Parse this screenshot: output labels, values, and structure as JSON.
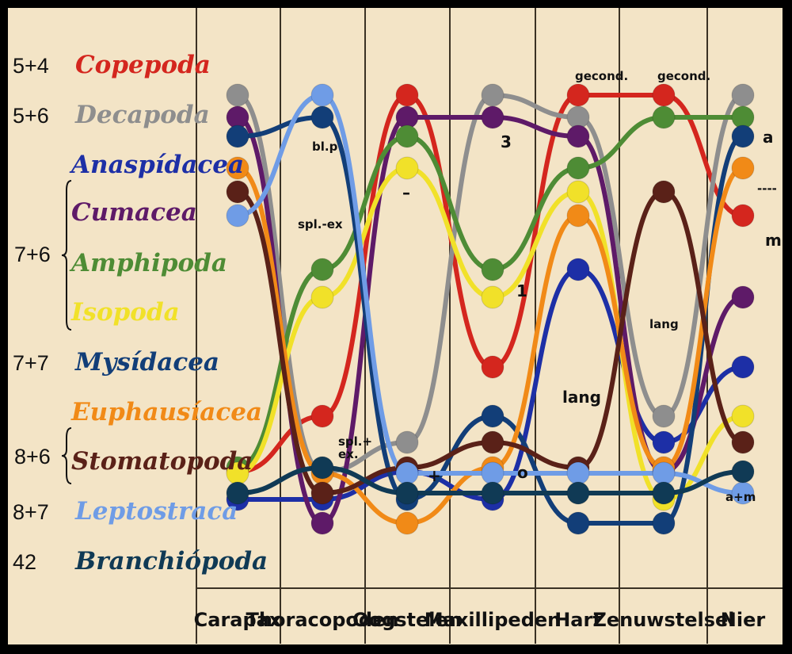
{
  "chart_data": {
    "type": "line",
    "categories": [
      "Carapax",
      "Thoracopoden",
      "Oogstelen",
      "Maxillipeden",
      "Hart",
      "Zenuwstelsel",
      "Nier"
    ],
    "series": [
      {
        "name": "Copepoda",
        "color": "#d4261e",
        "values": [
          12,
          10,
          1,
          7,
          1,
          1,
          6
        ]
      },
      {
        "name": "Decapoda",
        "color": "#8e8e8e",
        "values": [
          1,
          12,
          11,
          1,
          2,
          10,
          1
        ]
      },
      {
        "name": "Anaspidacea",
        "color": "#1d2fa6",
        "values": [
          13,
          13,
          12,
          13,
          8,
          11,
          7
        ]
      },
      {
        "name": "Cumacea",
        "color": "#5e1a68",
        "values": [
          2,
          14,
          2,
          2,
          3,
          12,
          9
        ]
      },
      {
        "name": "Amphipoda",
        "color": "#4e8c35",
        "values": [
          15,
          8,
          3,
          8,
          4,
          2,
          2
        ]
      },
      {
        "name": "Isopoda",
        "color": "#f1e129",
        "values": [
          16,
          9,
          4,
          9,
          5,
          13,
          10
        ]
      },
      {
        "name": "Mysidacea",
        "color": "#123e78",
        "values": [
          3,
          2,
          13,
          10,
          14,
          14,
          3
        ]
      },
      {
        "name": "Euphausiacea",
        "color": "#f18a17",
        "values": [
          4,
          16,
          14,
          15,
          6,
          15,
          4
        ]
      },
      {
        "name": "Stomatopoda",
        "color": "#5a2118",
        "values": [
          5,
          17,
          15,
          11,
          15,
          5,
          11
        ]
      },
      {
        "name": "Leptostraca",
        "color": "#6f9ce6",
        "values": [
          6,
          1,
          16,
          16,
          16,
          16,
          17
        ]
      },
      {
        "name": "Branchiopoda",
        "color": "#103a55",
        "values": [
          17,
          15,
          17,
          17,
          17,
          17,
          12
        ]
      }
    ],
    "legend": [
      {
        "formula": "5+4",
        "name": "Copepoda",
        "color": "#d4261e"
      },
      {
        "formula": "5+6",
        "name": "Decapoda",
        "color": "#8e8e8e"
      },
      {
        "formula": "",
        "name": "Anaspídacea",
        "color": "#1d2fa6"
      },
      {
        "formula": "",
        "name": "Cumacea",
        "color": "#5e1a68"
      },
      {
        "formula": "",
        "name": "Amphipoda",
        "color": "#4e8c35"
      },
      {
        "formula": "",
        "name": "Isopoda",
        "color": "#f1e129"
      },
      {
        "formula": "7+7",
        "name": "Mysídacea",
        "color": "#123e78"
      },
      {
        "formula": "",
        "name": "Euphausíacea",
        "color": "#f18a17"
      },
      {
        "formula": "",
        "name": "Stomatopoda",
        "color": "#5a2118"
      },
      {
        "formula": "8+7",
        "name": "Leptostraca",
        "color": "#6f9ce6"
      },
      {
        "formula": "42",
        "name": "Branchiópoda",
        "color": "#103a55"
      }
    ],
    "group_formulas": [
      {
        "formula": "7+6",
        "members": [
          "Anaspídacea",
          "Cumacea",
          "Amphipoda",
          "Isopoda"
        ]
      },
      {
        "formula": "8+6",
        "members": [
          "Euphausíacea",
          "Stomatopoda"
        ]
      }
    ],
    "annotations": [
      "gecond.",
      "gecond.",
      "bl.p",
      "spl.-ex",
      "spl.+ ex.",
      "–",
      "3",
      "1",
      "+",
      "o",
      "lang",
      "lang",
      "a",
      "----",
      "m",
      "a+m"
    ],
    "grid": true,
    "legend_position": "left"
  }
}
